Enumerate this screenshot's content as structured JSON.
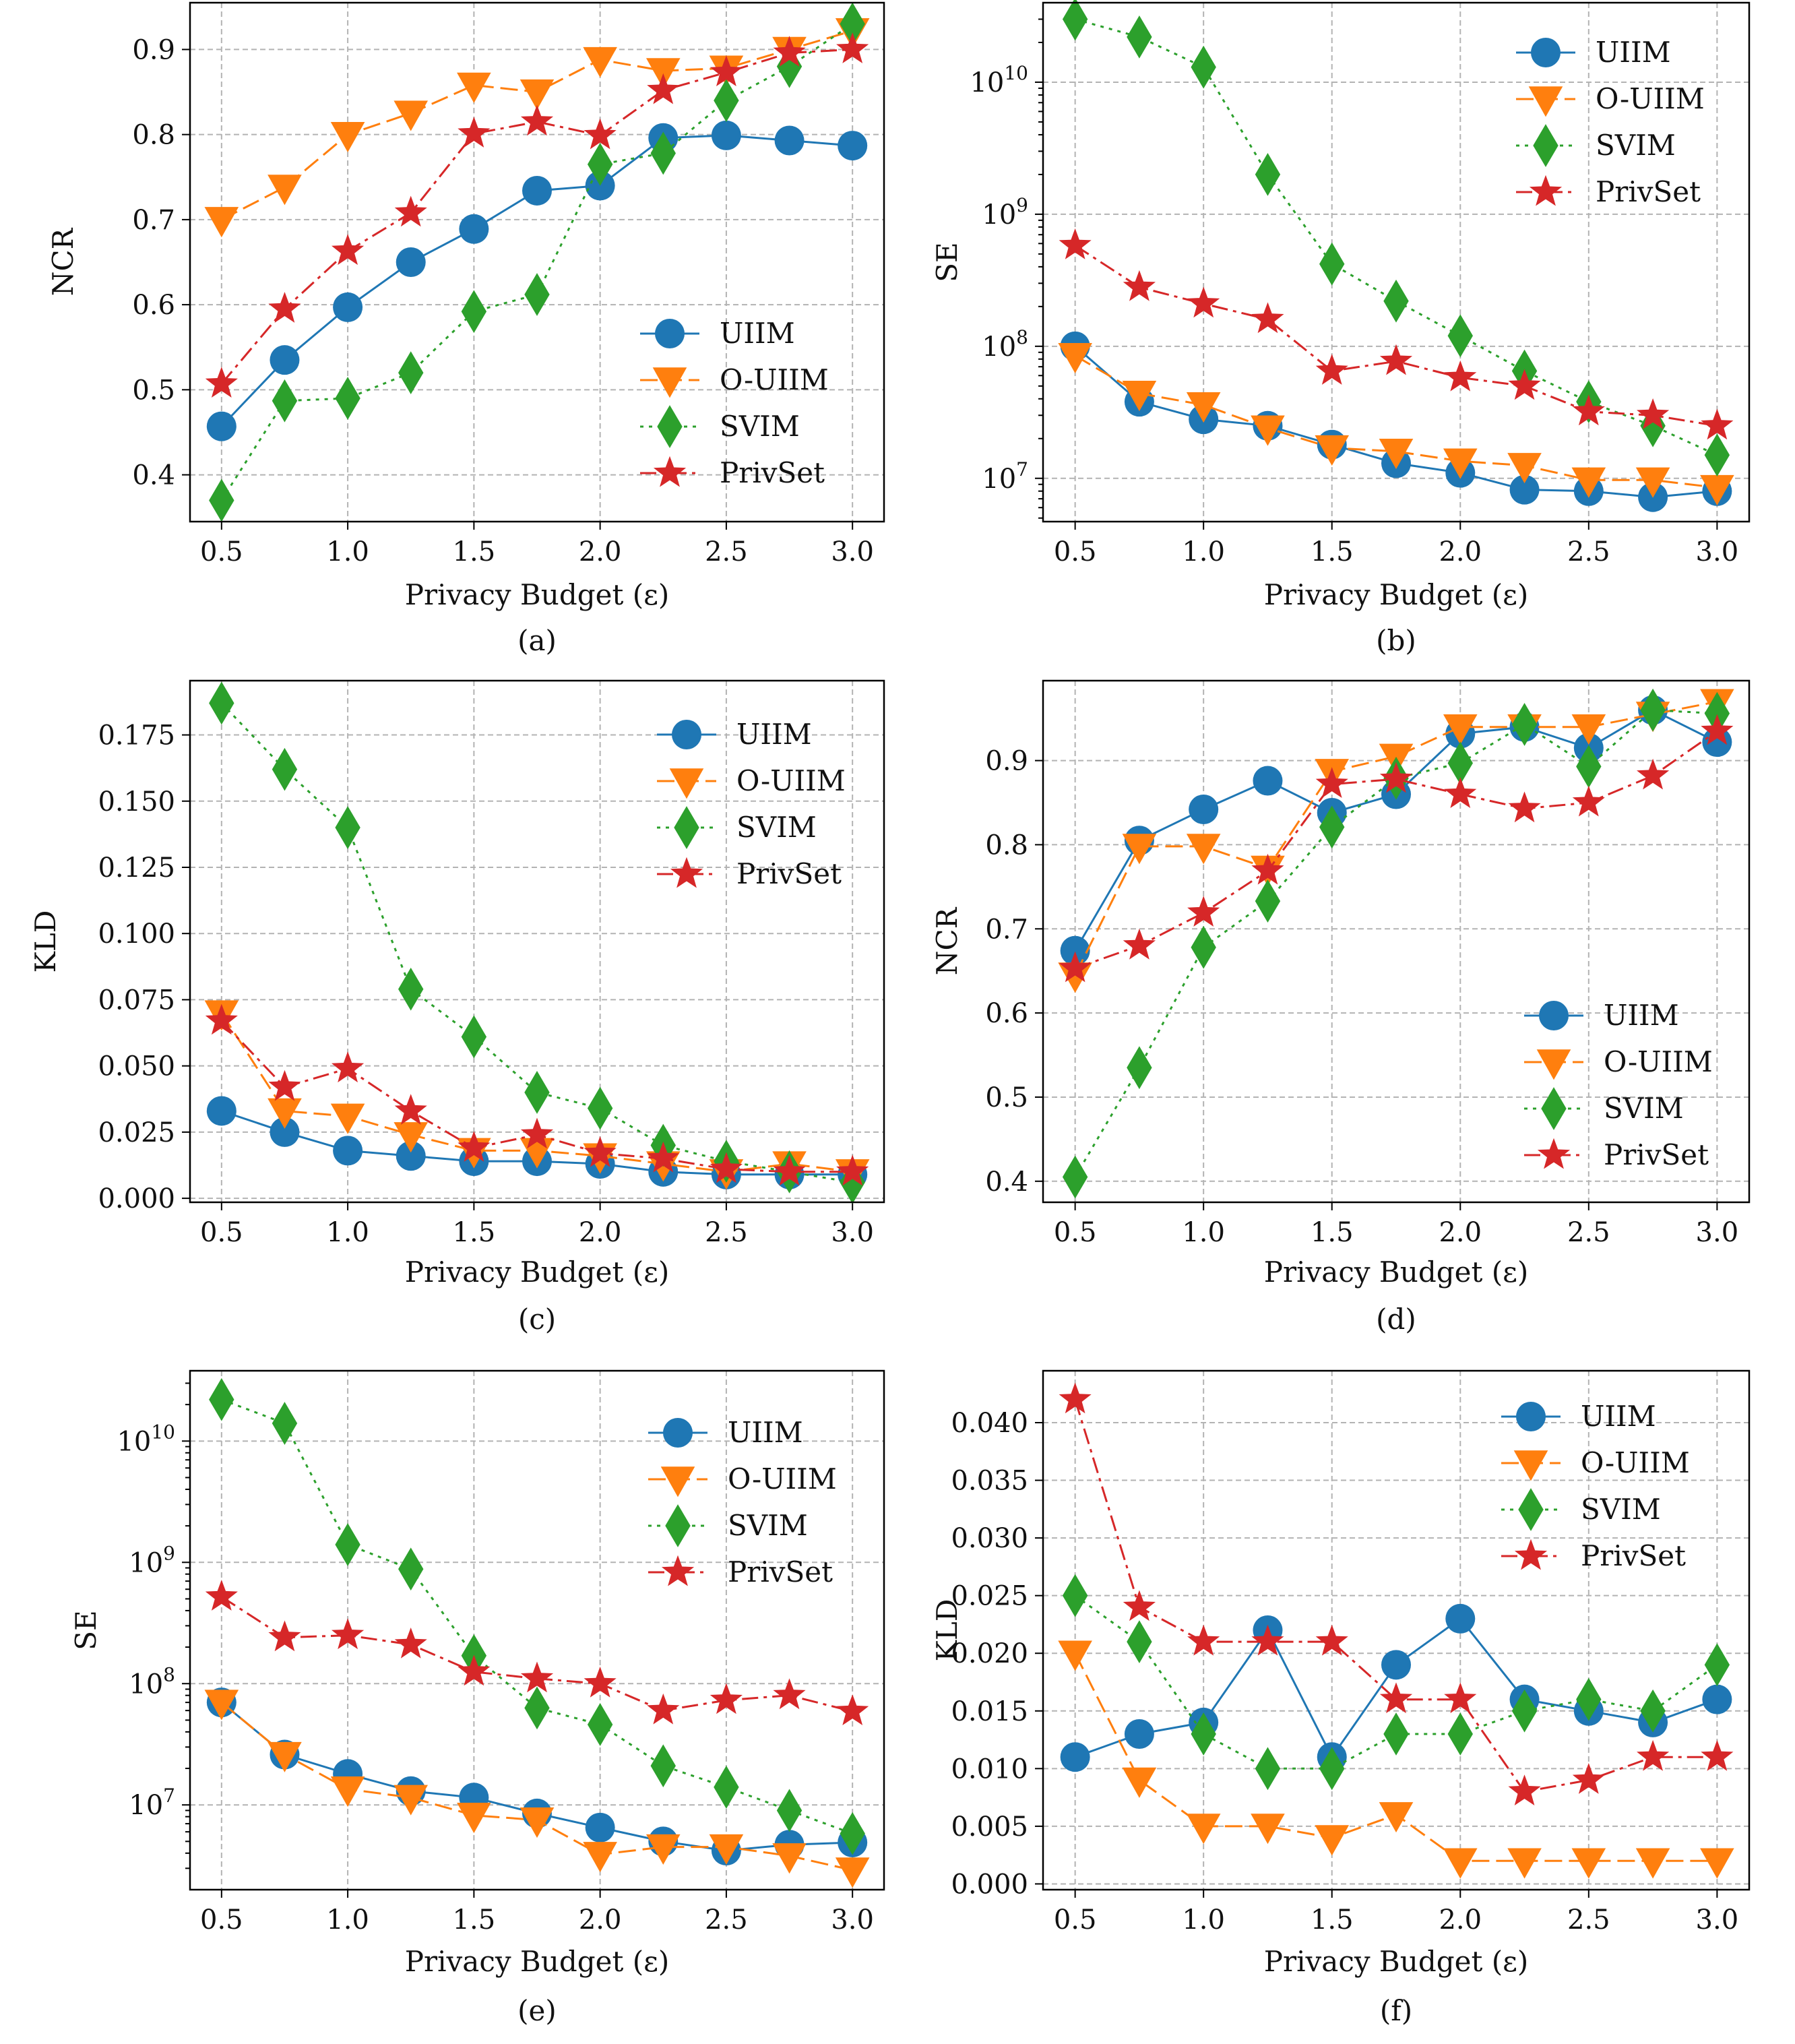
{
  "colors": {
    "UIIM": "#1f77b4",
    "O-UIIM": "#ff7f0e",
    "SVIM": "#2ca02c",
    "PrivSet": "#d62728"
  },
  "legend_labels": [
    "UIIM",
    "O-UIIM",
    "SVIM",
    "PrivSet"
  ],
  "chart_data": [
    {
      "type": "line",
      "caption": "(a)",
      "xlabel": "Privacy Budget (ε)",
      "ylabel": "NCR",
      "yscale": "linear",
      "xlim": [
        0.375,
        3.125
      ],
      "ylim": [
        0.345,
        0.955
      ],
      "xticks": [
        0.5,
        1.0,
        1.5,
        2.0,
        2.5,
        3.0
      ],
      "xtick_labels": [
        "0.5",
        "1.0",
        "1.5",
        "2.0",
        "2.5",
        "3.0"
      ],
      "yticks": [
        0.4,
        0.5,
        0.6,
        0.7,
        0.8,
        0.9
      ],
      "ytick_labels": [
        "0.4",
        "0.5",
        "0.6",
        "0.7",
        "0.8",
        "0.9"
      ],
      "grid": true,
      "legend_position": "center-right",
      "x": [
        0.5,
        0.75,
        1.0,
        1.25,
        1.5,
        1.75,
        2.0,
        2.25,
        2.5,
        2.75,
        3.0
      ],
      "series": [
        {
          "name": "UIIM",
          "values": [
            0.457,
            0.535,
            0.597,
            0.65,
            0.689,
            0.734,
            0.74,
            0.796,
            0.799,
            0.793,
            0.787
          ]
        },
        {
          "name": "O-UIIM",
          "values": [
            0.7,
            0.738,
            0.8,
            0.825,
            0.858,
            0.85,
            0.888,
            0.875,
            0.878,
            0.9,
            0.922
          ]
        },
        {
          "name": "SVIM",
          "values": [
            0.37,
            0.487,
            0.49,
            0.52,
            0.592,
            0.612,
            0.765,
            0.778,
            0.84,
            0.88,
            0.93
          ]
        },
        {
          "name": "PrivSet",
          "values": [
            0.507,
            0.595,
            0.663,
            0.708,
            0.801,
            0.815,
            0.799,
            0.852,
            0.873,
            0.896,
            0.9
          ]
        }
      ]
    },
    {
      "type": "line",
      "caption": "(b)",
      "xlabel": "Privacy Budget (ε)",
      "ylabel": "SE",
      "yscale": "log",
      "xlim": [
        0.375,
        3.125
      ],
      "ylim": [
        4700000.0,
        40000000000.0
      ],
      "xticks": [
        0.5,
        1.0,
        1.5,
        2.0,
        2.5,
        3.0
      ],
      "xtick_labels": [
        "0.5",
        "1.0",
        "1.5",
        "2.0",
        "2.5",
        "3.0"
      ],
      "yticks": [
        10000000.0,
        100000000.0,
        1000000000.0,
        10000000000.0
      ],
      "ytick_labels": [
        "10|7",
        "10|8",
        "10|9",
        "10|10"
      ],
      "grid": true,
      "legend_position": "top-right",
      "x": [
        0.5,
        0.75,
        1.0,
        1.25,
        1.5,
        1.75,
        2.0,
        2.25,
        2.5,
        2.75,
        3.0
      ],
      "series": [
        {
          "name": "UIIM",
          "values": [
            100000000.0,
            38000000.0,
            28000000.0,
            25000000.0,
            18000000.0,
            13000000.0,
            11000000.0,
            8200000.0,
            8000000.0,
            7200000.0,
            8000000.0
          ]
        },
        {
          "name": "O-UIIM",
          "values": [
            85000000.0,
            44000000.0,
            36000000.0,
            24000000.0,
            17000000.0,
            16000000.0,
            13500000.0,
            12500000.0,
            9700000.0,
            9700000.0,
            8500000.0
          ]
        },
        {
          "name": "SVIM",
          "values": [
            30000000000.0,
            22000000000.0,
            13000000000.0,
            2000000000.0,
            420000000.0,
            220000000.0,
            120000000.0,
            65000000.0,
            38000000.0,
            25000000.0,
            15000000.0
          ]
        },
        {
          "name": "PrivSet",
          "values": [
            580000000.0,
            280000000.0,
            210000000.0,
            160000000.0,
            65000000.0,
            77000000.0,
            58000000.0,
            50000000.0,
            32000000.0,
            30000000.0,
            25000000.0
          ]
        }
      ]
    },
    {
      "type": "line",
      "caption": "(c)",
      "xlabel": "Privacy Budget (ε)",
      "ylabel": "KLD",
      "yscale": "linear",
      "xlim": [
        0.375,
        3.125
      ],
      "ylim": [
        -0.0015,
        0.1955
      ],
      "xticks": [
        0.5,
        1.0,
        1.5,
        2.0,
        2.5,
        3.0
      ],
      "xtick_labels": [
        "0.5",
        "1.0",
        "1.5",
        "2.0",
        "2.5",
        "3.0"
      ],
      "yticks": [
        0.0,
        0.025,
        0.05,
        0.075,
        0.1,
        0.125,
        0.15,
        0.175
      ],
      "ytick_labels": [
        "0.000",
        "0.025",
        "0.050",
        "0.075",
        "0.100",
        "0.125",
        "0.150",
        "0.175"
      ],
      "grid": true,
      "legend_position": "top-right",
      "x": [
        0.5,
        0.75,
        1.0,
        1.25,
        1.5,
        1.75,
        2.0,
        2.25,
        2.5,
        2.75,
        3.0
      ],
      "series": [
        {
          "name": "UIIM",
          "values": [
            0.033,
            0.025,
            0.018,
            0.016,
            0.014,
            0.014,
            0.013,
            0.01,
            0.009,
            0.009,
            0.009
          ]
        },
        {
          "name": "O-UIIM",
          "values": [
            0.07,
            0.033,
            0.031,
            0.024,
            0.018,
            0.018,
            0.016,
            0.013,
            0.01,
            0.013,
            0.01
          ]
        },
        {
          "name": "SVIM",
          "values": [
            0.187,
            0.162,
            0.14,
            0.079,
            0.061,
            0.04,
            0.034,
            0.02,
            0.014,
            0.01,
            0.006
          ]
        },
        {
          "name": "PrivSet",
          "values": [
            0.067,
            0.042,
            0.049,
            0.033,
            0.019,
            0.024,
            0.017,
            0.015,
            0.011,
            0.01,
            0.01
          ]
        }
      ]
    },
    {
      "type": "line",
      "caption": "(d)",
      "xlabel": "Privacy Budget (ε)",
      "ylabel": "NCR",
      "yscale": "linear",
      "xlim": [
        0.375,
        3.125
      ],
      "ylim": [
        0.375,
        0.995
      ],
      "xticks": [
        0.5,
        1.0,
        1.5,
        2.0,
        2.5,
        3.0
      ],
      "xtick_labels": [
        "0.5",
        "1.0",
        "1.5",
        "2.0",
        "2.5",
        "3.0"
      ],
      "yticks": [
        0.4,
        0.5,
        0.6,
        0.7,
        0.8,
        0.9
      ],
      "ytick_labels": [
        "0.4",
        "0.5",
        "0.6",
        "0.7",
        "0.8",
        "0.9"
      ],
      "grid": true,
      "legend_position": "lower-right",
      "x": [
        0.5,
        0.75,
        1.0,
        1.25,
        1.5,
        1.75,
        2.0,
        2.25,
        2.5,
        2.75,
        3.0
      ],
      "series": [
        {
          "name": "UIIM",
          "values": [
            0.674,
            0.805,
            0.842,
            0.876,
            0.838,
            0.86,
            0.932,
            0.94,
            0.915,
            0.96,
            0.922
          ]
        },
        {
          "name": "O-UIIM",
          "values": [
            0.645,
            0.798,
            0.798,
            0.772,
            0.887,
            0.905,
            0.94,
            0.94,
            0.94,
            0.955,
            0.97
          ]
        },
        {
          "name": "SVIM",
          "values": [
            0.405,
            0.535,
            0.678,
            0.733,
            0.821,
            0.879,
            0.897,
            0.943,
            0.893,
            0.96,
            0.956
          ]
        },
        {
          "name": "PrivSet",
          "values": [
            0.653,
            0.68,
            0.719,
            0.769,
            0.872,
            0.878,
            0.86,
            0.843,
            0.85,
            0.882,
            0.935
          ]
        }
      ]
    },
    {
      "type": "line",
      "caption": "(e)",
      "xlabel": "Privacy Budget  (ε)",
      "ylabel": "SE",
      "yscale": "log",
      "xlim": [
        0.375,
        3.125
      ],
      "ylim": [
        2000000.0,
        38000000000.0
      ],
      "xticks": [
        0.5,
        1.0,
        1.5,
        2.0,
        2.5,
        3.0
      ],
      "xtick_labels": [
        "0.5",
        "1.0",
        "1.5",
        "2.0",
        "2.5",
        "3.0"
      ],
      "yticks": [
        10000000.0,
        100000000.0,
        1000000000.0,
        10000000000.0
      ],
      "ytick_labels": [
        "10|7",
        "10|8",
        "10|9",
        "10|10"
      ],
      "grid": true,
      "legend_position": "top-right",
      "x": [
        0.5,
        0.75,
        1.0,
        1.25,
        1.5,
        1.75,
        2.0,
        2.25,
        2.5,
        2.75,
        3.0
      ],
      "series": [
        {
          "name": "UIIM",
          "values": [
            70000000.0,
            26000000.0,
            18000000.0,
            13000000.0,
            11500000.0,
            8500000.0,
            6500000.0,
            5000000.0,
            4200000.0,
            4700000.0,
            4900000.0
          ]
        },
        {
          "name": "O-UIIM",
          "values": [
            70000000.0,
            26000000.0,
            13500000.0,
            11500000.0,
            8200000.0,
            7500000.0,
            3900000.0,
            4500000.0,
            4500000.0,
            3800000.0,
            2900000.0
          ]
        },
        {
          "name": "SVIM",
          "values": [
            22000000000.0,
            14000000000.0,
            1400000000.0,
            880000000.0,
            170000000.0,
            63000000.0,
            46000000.0,
            21000000.0,
            14000000.0,
            9000000.0,
            5800000.0
          ]
        },
        {
          "name": "PrivSet",
          "values": [
            520000000.0,
            240000000.0,
            250000000.0,
            210000000.0,
            125000000.0,
            110000000.0,
            100000000.0,
            60000000.0,
            73000000.0,
            80000000.0,
            59000000.0
          ]
        }
      ]
    },
    {
      "type": "line",
      "caption": "(f)",
      "xlabel": "Privacy Budget (ε)",
      "ylabel": "KLD",
      "yscale": "linear",
      "xlim": [
        0.375,
        3.125
      ],
      "ylim": [
        -0.0005,
        0.0445
      ],
      "xticks": [
        0.5,
        1.0,
        1.5,
        2.0,
        2.5,
        3.0
      ],
      "xtick_labels": [
        "0.5",
        "1.0",
        "1.5",
        "2.0",
        "2.5",
        "3.0"
      ],
      "yticks": [
        0.0,
        0.005,
        0.01,
        0.015,
        0.02,
        0.025,
        0.03,
        0.035,
        0.04
      ],
      "ytick_labels": [
        "0.000",
        "0.005",
        "0.010",
        "0.015",
        "0.020",
        "0.025",
        "0.030",
        "0.035",
        "0.040"
      ],
      "grid": true,
      "legend_position": "top-right",
      "x": [
        0.5,
        0.75,
        1.0,
        1.25,
        1.5,
        1.75,
        2.0,
        2.25,
        2.5,
        2.75,
        3.0
      ],
      "series": [
        {
          "name": "UIIM",
          "values": [
            0.011,
            0.013,
            0.014,
            0.022,
            0.011,
            0.019,
            0.023,
            0.016,
            0.015,
            0.014,
            0.016
          ]
        },
        {
          "name": "O-UIIM",
          "values": [
            0.02,
            0.009,
            0.005,
            0.005,
            0.004,
            0.006,
            0.002,
            0.002,
            0.002,
            0.002,
            0.002
          ]
        },
        {
          "name": "SVIM",
          "values": [
            0.025,
            0.021,
            0.013,
            0.01,
            0.01,
            0.013,
            0.013,
            0.015,
            0.016,
            0.015,
            0.019
          ]
        },
        {
          "name": "PrivSet",
          "values": [
            0.042,
            0.024,
            0.021,
            0.021,
            0.021,
            0.016,
            0.016,
            0.008,
            0.009,
            0.011,
            0.011
          ]
        }
      ]
    }
  ]
}
